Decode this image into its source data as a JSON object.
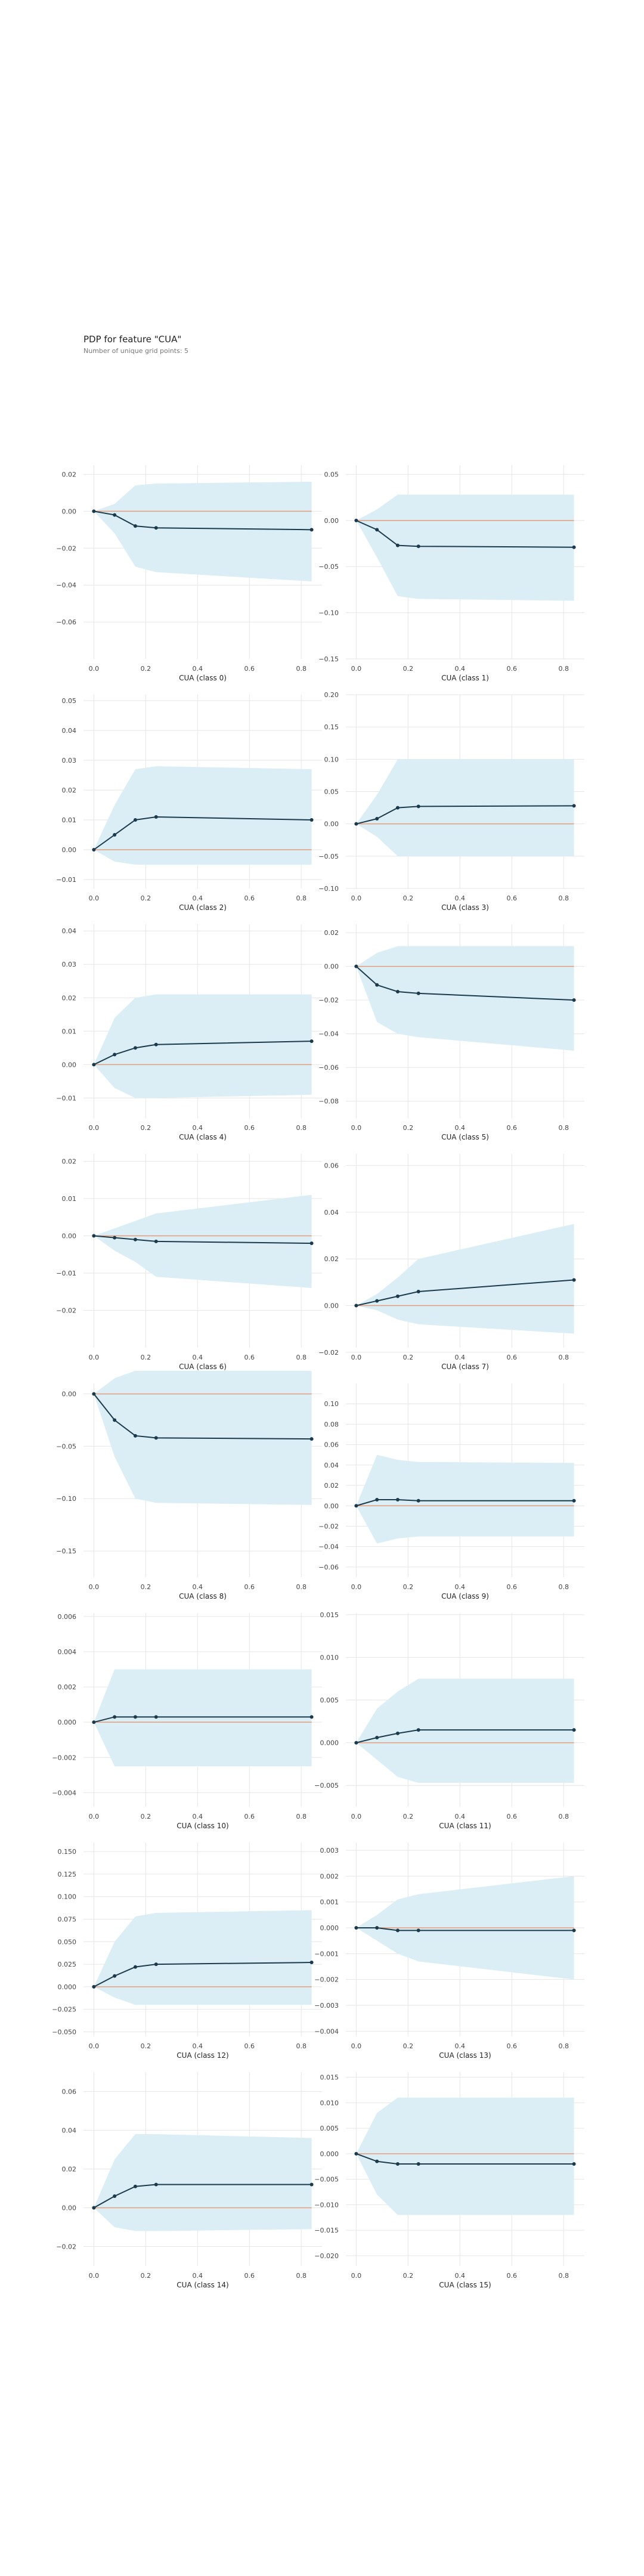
{
  "header": {
    "title": "PDP for feature \"CUA\"",
    "subtitle": "Number of unique grid points: 5"
  },
  "colors": {
    "band": "#dbeef6",
    "line": "#1b3a4b",
    "zero_line": "#e39c7a",
    "grid": "#e6e6e6",
    "tick_text": "#444444"
  },
  "chart_data": [
    {
      "type": "line",
      "xlabel": "CUA (class 0)",
      "x": [
        0,
        0.08,
        0.16,
        0.24,
        0.84
      ],
      "y": [
        0,
        -0.002,
        -0.008,
        -0.009,
        -0.01
      ],
      "upper": [
        0,
        0.004,
        0.014,
        0.015,
        0.016
      ],
      "lower": [
        0,
        -0.012,
        -0.03,
        -0.033,
        -0.038
      ],
      "xlim": [
        -0.04,
        0.88
      ],
      "ylim": [
        -0.08,
        0.025
      ],
      "xticks": [
        "0.0",
        "0.2",
        "0.4",
        "0.6",
        "0.8"
      ],
      "xtick_values": [
        0,
        0.2,
        0.4,
        0.6,
        0.8
      ],
      "yticks": [
        0.02,
        0,
        -0.02,
        -0.04,
        -0.06
      ],
      "ytick_labels": [
        "0.02",
        "0.00",
        "−0.02",
        "−0.04",
        "−0.06"
      ],
      "grid": true
    },
    {
      "type": "line",
      "xlabel": "CUA (class 1)",
      "x": [
        0,
        0.08,
        0.16,
        0.24,
        0.84
      ],
      "y": [
        0,
        -0.01,
        -0.027,
        -0.028,
        -0.029
      ],
      "upper": [
        0,
        0.012,
        0.028,
        0.028,
        0.028
      ],
      "lower": [
        0,
        -0.04,
        -0.082,
        -0.085,
        -0.087
      ],
      "xlim": [
        -0.04,
        0.88
      ],
      "ylim": [
        -0.15,
        0.06
      ],
      "xticks": [
        "0.0",
        "0.2",
        "0.4",
        "0.6",
        "0.8"
      ],
      "xtick_values": [
        0,
        0.2,
        0.4,
        0.6,
        0.8
      ],
      "yticks": [
        0.05,
        0,
        -0.05,
        -0.1,
        -0.15
      ],
      "ytick_labels": [
        "0.05",
        "0.00",
        "−0.05",
        "−0.10",
        "−0.15"
      ],
      "grid": true
    },
    {
      "type": "line",
      "xlabel": "CUA (class 2)",
      "x": [
        0,
        0.08,
        0.16,
        0.24,
        0.84
      ],
      "y": [
        0,
        0.005,
        0.01,
        0.011,
        0.01
      ],
      "upper": [
        0,
        0.015,
        0.027,
        0.028,
        0.027
      ],
      "lower": [
        0,
        -0.004,
        -0.005,
        -0.005,
        -0.005
      ],
      "xlim": [
        -0.04,
        0.88
      ],
      "ylim": [
        -0.013,
        0.052
      ],
      "xticks": [
        "0.0",
        "0.2",
        "0.4",
        "0.6",
        "0.8"
      ],
      "xtick_values": [
        0,
        0.2,
        0.4,
        0.6,
        0.8
      ],
      "yticks": [
        0.05,
        0.04,
        0.03,
        0.02,
        0.01,
        0,
        -0.01
      ],
      "ytick_labels": [
        "0.05",
        "0.04",
        "0.03",
        "0.02",
        "0.01",
        "0.00",
        "−0.01"
      ],
      "grid": true
    },
    {
      "type": "line",
      "xlabel": "CUA (class 3)",
      "x": [
        0,
        0.08,
        0.16,
        0.24,
        0.84
      ],
      "y": [
        0,
        0.008,
        0.025,
        0.027,
        0.028
      ],
      "upper": [
        0,
        0.045,
        0.1,
        0.1,
        0.1
      ],
      "lower": [
        0,
        -0.02,
        -0.05,
        -0.05,
        -0.05
      ],
      "xlim": [
        -0.04,
        0.88
      ],
      "ylim": [
        -0.1,
        0.2
      ],
      "xticks": [
        "0.0",
        "0.2",
        "0.4",
        "0.6",
        "0.8"
      ],
      "xtick_values": [
        0,
        0.2,
        0.4,
        0.6,
        0.8
      ],
      "yticks": [
        0.2,
        0.15,
        0.1,
        0.05,
        0,
        -0.05,
        -0.1
      ],
      "ytick_labels": [
        "0.20",
        "0.15",
        "0.10",
        "0.05",
        "0.00",
        "−0.05",
        "−0.10"
      ],
      "grid": true
    },
    {
      "type": "line",
      "xlabel": "CUA (class 4)",
      "x": [
        0,
        0.08,
        0.16,
        0.24,
        0.84
      ],
      "y": [
        0,
        0.003,
        0.005,
        0.006,
        0.007
      ],
      "upper": [
        0,
        0.014,
        0.02,
        0.021,
        0.021
      ],
      "lower": [
        0,
        -0.007,
        -0.01,
        -0.01,
        -0.009
      ],
      "xlim": [
        -0.04,
        0.88
      ],
      "ylim": [
        -0.016,
        0.042
      ],
      "xticks": [
        "0.0",
        "0.2",
        "0.4",
        "0.6",
        "0.8"
      ],
      "xtick_values": [
        0,
        0.2,
        0.4,
        0.6,
        0.8
      ],
      "yticks": [
        0.04,
        0.03,
        0.02,
        0.01,
        0,
        -0.01
      ],
      "ytick_labels": [
        "0.04",
        "0.03",
        "0.02",
        "0.01",
        "0.00",
        "−0.01"
      ],
      "grid": true
    },
    {
      "type": "line",
      "xlabel": "CUA (class 5)",
      "x": [
        0,
        0.08,
        0.16,
        0.24,
        0.84
      ],
      "y": [
        0,
        -0.011,
        -0.015,
        -0.016,
        -0.02
      ],
      "upper": [
        0,
        0.008,
        0.012,
        0.012,
        0.012
      ],
      "lower": [
        0,
        -0.033,
        -0.04,
        -0.042,
        -0.05
      ],
      "xlim": [
        -0.04,
        0.88
      ],
      "ylim": [
        -0.09,
        0.025
      ],
      "xticks": [
        "0.0",
        "0.2",
        "0.4",
        "0.6",
        "0.8"
      ],
      "xtick_values": [
        0,
        0.2,
        0.4,
        0.6,
        0.8
      ],
      "yticks": [
        0.02,
        0,
        -0.02,
        -0.04,
        -0.06,
        -0.08
      ],
      "ytick_labels": [
        "0.02",
        "0.00",
        "−0.02",
        "−0.04",
        "−0.06",
        "−0.08"
      ],
      "grid": true
    },
    {
      "type": "line",
      "xlabel": "CUA (class 6)",
      "x": [
        0,
        0.08,
        0.16,
        0.24,
        0.84
      ],
      "y": [
        0,
        -0.0005,
        -0.001,
        -0.0015,
        -0.002
      ],
      "upper": [
        0,
        0.002,
        0.004,
        0.006,
        0.011
      ],
      "lower": [
        0,
        -0.004,
        -0.007,
        -0.011,
        -0.014
      ],
      "xlim": [
        -0.04,
        0.88
      ],
      "ylim": [
        -0.03,
        0.022
      ],
      "xticks": [
        "0.0",
        "0.2",
        "0.4",
        "0.6",
        "0.8"
      ],
      "xtick_values": [
        0,
        0.2,
        0.4,
        0.6,
        0.8
      ],
      "yticks": [
        0.02,
        0.01,
        0,
        -0.01,
        -0.02
      ],
      "ytick_labels": [
        "0.02",
        "0.01",
        "0.00",
        "−0.01",
        "−0.02"
      ],
      "grid": true
    },
    {
      "type": "line",
      "xlabel": "CUA (class 7)",
      "x": [
        0,
        0.08,
        0.16,
        0.24,
        0.84
      ],
      "y": [
        0,
        0.002,
        0.004,
        0.006,
        0.011
      ],
      "upper": [
        0,
        0.005,
        0.012,
        0.02,
        0.035
      ],
      "lower": [
        0,
        -0.002,
        -0.006,
        -0.008,
        -0.012
      ],
      "xlim": [
        -0.04,
        0.88
      ],
      "ylim": [
        -0.018,
        0.065
      ],
      "xticks": [
        "0.0",
        "0.2",
        "0.4",
        "0.6",
        "0.8"
      ],
      "xtick_values": [
        0,
        0.2,
        0.4,
        0.6,
        0.8
      ],
      "yticks": [
        0.06,
        0.04,
        0.02,
        0,
        -0.02
      ],
      "ytick_labels": [
        "0.06",
        "0.04",
        "0.02",
        "0.00",
        "−0.02"
      ],
      "grid": true
    },
    {
      "type": "line",
      "xlabel": "CUA (class 8)",
      "x": [
        0,
        0.08,
        0.16,
        0.24,
        0.84
      ],
      "y": [
        0,
        -0.025,
        -0.04,
        -0.042,
        -0.043
      ],
      "upper": [
        0,
        0.015,
        0.022,
        0.022,
        0.022
      ],
      "lower": [
        0,
        -0.06,
        -0.1,
        -0.104,
        -0.106
      ],
      "xlim": [
        -0.04,
        0.88
      ],
      "ylim": [
        -0.175,
        0.01
      ],
      "xticks": [
        "0.0",
        "0.2",
        "0.4",
        "0.6",
        "0.8"
      ],
      "xtick_values": [
        0,
        0.2,
        0.4,
        0.6,
        0.8
      ],
      "yticks": [
        0,
        -0.05,
        -0.1,
        -0.15
      ],
      "ytick_labels": [
        "0.00",
        "−0.05",
        "−0.10",
        "−0.15"
      ],
      "grid": true
    },
    {
      "type": "line",
      "xlabel": "CUA (class 9)",
      "x": [
        0,
        0.08,
        0.16,
        0.24,
        0.84
      ],
      "y": [
        0,
        0.006,
        0.006,
        0.005,
        0.005
      ],
      "upper": [
        0,
        0.05,
        0.045,
        0.043,
        0.042
      ],
      "lower": [
        0,
        -0.037,
        -0.032,
        -0.03,
        -0.03
      ],
      "xlim": [
        -0.04,
        0.88
      ],
      "ylim": [
        -0.07,
        0.12
      ],
      "xticks": [
        "0.0",
        "0.2",
        "0.4",
        "0.6",
        "0.8"
      ],
      "xtick_values": [
        0,
        0.2,
        0.4,
        0.6,
        0.8
      ],
      "yticks": [
        0.1,
        0.08,
        0.06,
        0.04,
        0.02,
        0,
        -0.02,
        -0.04,
        -0.06
      ],
      "ytick_labels": [
        "0.10",
        "0.08",
        "0.06",
        "0.04",
        "0.02",
        "0.00",
        "−0.02",
        "−0.04",
        "−0.06"
      ],
      "grid": true
    },
    {
      "type": "line",
      "xlabel": "CUA (class 10)",
      "x": [
        0,
        0.08,
        0.16,
        0.24,
        0.84
      ],
      "y": [
        0,
        0.0003,
        0.0003,
        0.0003,
        0.0003
      ],
      "upper": [
        0,
        0.003,
        0.003,
        0.003,
        0.003
      ],
      "lower": [
        0,
        -0.0025,
        -0.0025,
        -0.0025,
        -0.0025
      ],
      "xlim": [
        -0.04,
        0.88
      ],
      "ylim": [
        -0.0048,
        0.0062
      ],
      "xticks": [
        "0.0",
        "0.2",
        "0.4",
        "0.6",
        "0.8"
      ],
      "xtick_values": [
        0,
        0.2,
        0.4,
        0.6,
        0.8
      ],
      "yticks": [
        0.006,
        0.004,
        0.002,
        0,
        -0.002,
        -0.004
      ],
      "ytick_labels": [
        "0.006",
        "0.004",
        "0.002",
        "0.000",
        "−0.002",
        "−0.004"
      ],
      "grid": true
    },
    {
      "type": "line",
      "xlabel": "CUA (class 11)",
      "x": [
        0,
        0.08,
        0.16,
        0.24,
        0.84
      ],
      "y": [
        0,
        0.0006,
        0.0011,
        0.0015,
        0.0015
      ],
      "upper": [
        0,
        0.004,
        0.006,
        0.0075,
        0.0075
      ],
      "lower": [
        0,
        -0.002,
        -0.004,
        -0.0047,
        -0.0047
      ],
      "xlim": [
        -0.04,
        0.88
      ],
      "ylim": [
        -0.0075,
        0.0152
      ],
      "xticks": [
        "0.0",
        "0.2",
        "0.4",
        "0.6",
        "0.8"
      ],
      "xtick_values": [
        0,
        0.2,
        0.4,
        0.6,
        0.8
      ],
      "yticks": [
        0.015,
        0.01,
        0.005,
        0,
        -0.005
      ],
      "ytick_labels": [
        "0.015",
        "0.010",
        "0.005",
        "0.000",
        "−0.005"
      ],
      "grid": true
    },
    {
      "type": "line",
      "xlabel": "CUA (class 12)",
      "x": [
        0,
        0.08,
        0.16,
        0.24,
        0.84
      ],
      "y": [
        0,
        0.012,
        0.022,
        0.025,
        0.027
      ],
      "upper": [
        0,
        0.05,
        0.078,
        0.082,
        0.085
      ],
      "lower": [
        0,
        -0.012,
        -0.02,
        -0.02,
        -0.02
      ],
      "xlim": [
        -0.04,
        0.88
      ],
      "ylim": [
        -0.055,
        0.16
      ],
      "xticks": [
        "0.0",
        "0.2",
        "0.4",
        "0.6",
        "0.8"
      ],
      "xtick_values": [
        0,
        0.2,
        0.4,
        0.6,
        0.8
      ],
      "yticks": [
        0.15,
        0.125,
        0.1,
        0.075,
        0.05,
        0.025,
        0,
        -0.025,
        -0.05
      ],
      "ytick_labels": [
        "0.150",
        "0.125",
        "0.100",
        "0.075",
        "0.050",
        "0.025",
        "0.000",
        "−0.025",
        "−0.050"
      ],
      "grid": true
    },
    {
      "type": "line",
      "xlabel": "CUA (class 13)",
      "x": [
        0,
        0.08,
        0.16,
        0.24,
        0.84
      ],
      "y": [
        0,
        0,
        -0.0001,
        -0.0001,
        -0.0001
      ],
      "upper": [
        0,
        0.0005,
        0.0011,
        0.0013,
        0.002
      ],
      "lower": [
        0,
        -0.0005,
        -0.001,
        -0.0013,
        -0.002
      ],
      "xlim": [
        -0.04,
        0.88
      ],
      "ylim": [
        -0.0042,
        0.0033
      ],
      "xticks": [
        "0.0",
        "0.2",
        "0.4",
        "0.6",
        "0.8"
      ],
      "xtick_values": [
        0,
        0.2,
        0.4,
        0.6,
        0.8
      ],
      "yticks": [
        0.003,
        0.002,
        0.001,
        0,
        -0.001,
        -0.002,
        -0.003,
        -0.004
      ],
      "ytick_labels": [
        "0.003",
        "0.002",
        "0.001",
        "0.000",
        "−0.001",
        "−0.002",
        "−0.003",
        "−0.004"
      ],
      "grid": true
    },
    {
      "type": "line",
      "xlabel": "CUA (class 14)",
      "x": [
        0,
        0.08,
        0.16,
        0.24,
        0.84
      ],
      "y": [
        0,
        0.006,
        0.011,
        0.012,
        0.012
      ],
      "upper": [
        0,
        0.025,
        0.038,
        0.038,
        0.036
      ],
      "lower": [
        0,
        -0.01,
        -0.012,
        -0.012,
        -0.011
      ],
      "xlim": [
        -0.04,
        0.88
      ],
      "ylim": [
        -0.03,
        0.07
      ],
      "xticks": [
        "0.0",
        "0.2",
        "0.4",
        "0.6",
        "0.8"
      ],
      "xtick_values": [
        0,
        0.2,
        0.4,
        0.6,
        0.8
      ],
      "yticks": [
        0.06,
        0.04,
        0.02,
        0,
        -0.02
      ],
      "ytick_labels": [
        "0.06",
        "0.04",
        "0.02",
        "0.00",
        "−0.02"
      ],
      "grid": true
    },
    {
      "type": "line",
      "xlabel": "CUA (class 15)",
      "x": [
        0,
        0.08,
        0.16,
        0.24,
        0.84
      ],
      "y": [
        0,
        -0.0015,
        -0.002,
        -0.002,
        -0.002
      ],
      "upper": [
        0,
        0.008,
        0.011,
        0.011,
        0.011
      ],
      "lower": [
        0,
        -0.008,
        -0.012,
        -0.012,
        -0.012
      ],
      "xlim": [
        -0.04,
        0.88
      ],
      "ylim": [
        -0.022,
        0.016
      ],
      "xticks": [
        "0.0",
        "0.2",
        "0.4",
        "0.6",
        "0.8"
      ],
      "xtick_values": [
        0,
        0.2,
        0.4,
        0.6,
        0.8
      ],
      "yticks": [
        0.015,
        0.01,
        0.005,
        0,
        -0.005,
        -0.01,
        -0.015,
        -0.02
      ],
      "ytick_labels": [
        "0.015",
        "0.010",
        "0.005",
        "0.000",
        "−0.005",
        "−0.010",
        "−0.015",
        "−0.020"
      ],
      "grid": true
    }
  ]
}
